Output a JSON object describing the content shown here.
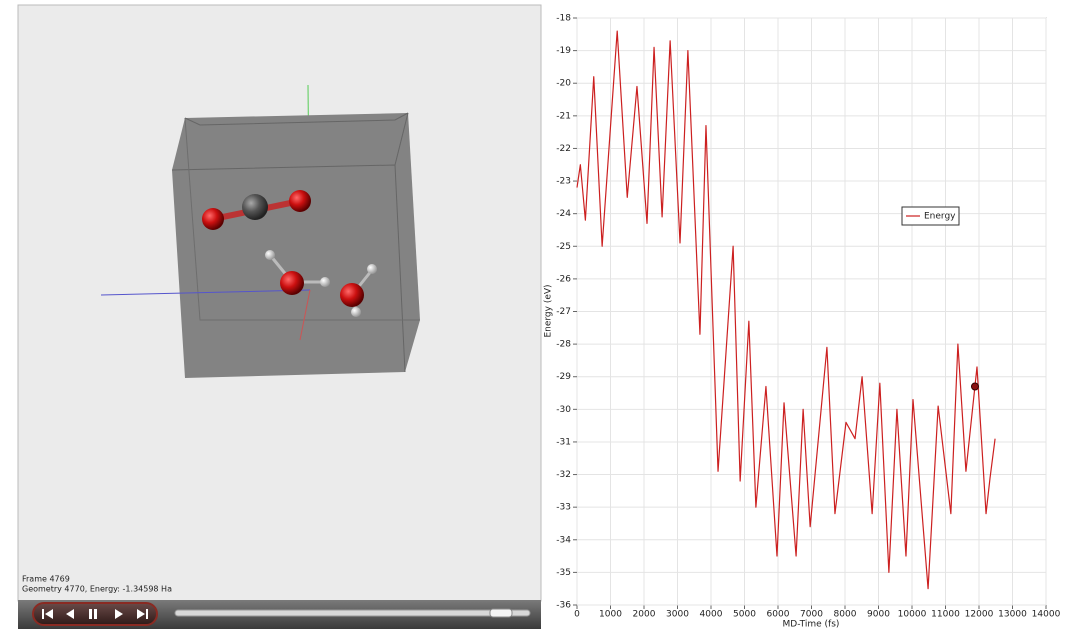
{
  "viewer": {
    "frame_label": "Frame 4769",
    "geometry_label": "Geometry 4770, Energy: -1.34598 Ha"
  },
  "chart_data": {
    "type": "line",
    "x_label": "MD-Time (fs)",
    "y_label": "Energy (eV)",
    "x": [
      0,
      100,
      250,
      500,
      750,
      1200,
      1500,
      1790,
      2090,
      2300,
      2540,
      2780,
      3075,
      3310,
      3670,
      3850,
      4210,
      4660,
      4870,
      5130,
      5340,
      5640,
      5970,
      6180,
      6540,
      6750,
      6960,
      7460,
      7700,
      8030,
      8300,
      8510,
      8810,
      9040,
      9310,
      9550,
      9820,
      10030,
      10480,
      10780,
      11160,
      11370,
      11610,
      11940,
      12210,
      12330,
      12480
    ],
    "series": [
      {
        "name": "Energy",
        "color": "#cc2020",
        "values": [
          -23.2,
          -22.5,
          -24.2,
          -19.8,
          -25.0,
          -18.4,
          -23.5,
          -20.1,
          -24.3,
          -18.9,
          -24.1,
          -18.7,
          -24.9,
          -19.0,
          -27.7,
          -21.3,
          -31.9,
          -25.0,
          -32.2,
          -27.3,
          -33.0,
          -29.3,
          -34.5,
          -29.8,
          -34.5,
          -30.0,
          -33.6,
          -28.1,
          -33.2,
          -30.4,
          -30.9,
          -29.0,
          -33.2,
          -29.2,
          -35.0,
          -30.0,
          -34.5,
          -29.7,
          -35.5,
          -29.9,
          -33.2,
          -28.0,
          -31.9,
          -28.7,
          -33.2,
          -32.1,
          -30.9
        ]
      }
    ],
    "highlight_point": {
      "x": 11880,
      "y": -29.3
    },
    "xlim": [
      0,
      14000
    ],
    "ylim": [
      -36,
      -18
    ],
    "xticks": [
      0,
      1000,
      2000,
      3000,
      4000,
      5000,
      6000,
      7000,
      8000,
      9000,
      10000,
      11000,
      12000,
      13000,
      14000
    ],
    "yticks": [
      -18,
      -19,
      -20,
      -21,
      -22,
      -23,
      -24,
      -25,
      -26,
      -27,
      -28,
      -29,
      -30,
      -31,
      -32,
      -33,
      -34,
      -35,
      -36
    ],
    "grid": true,
    "legend_position": "upper right"
  }
}
